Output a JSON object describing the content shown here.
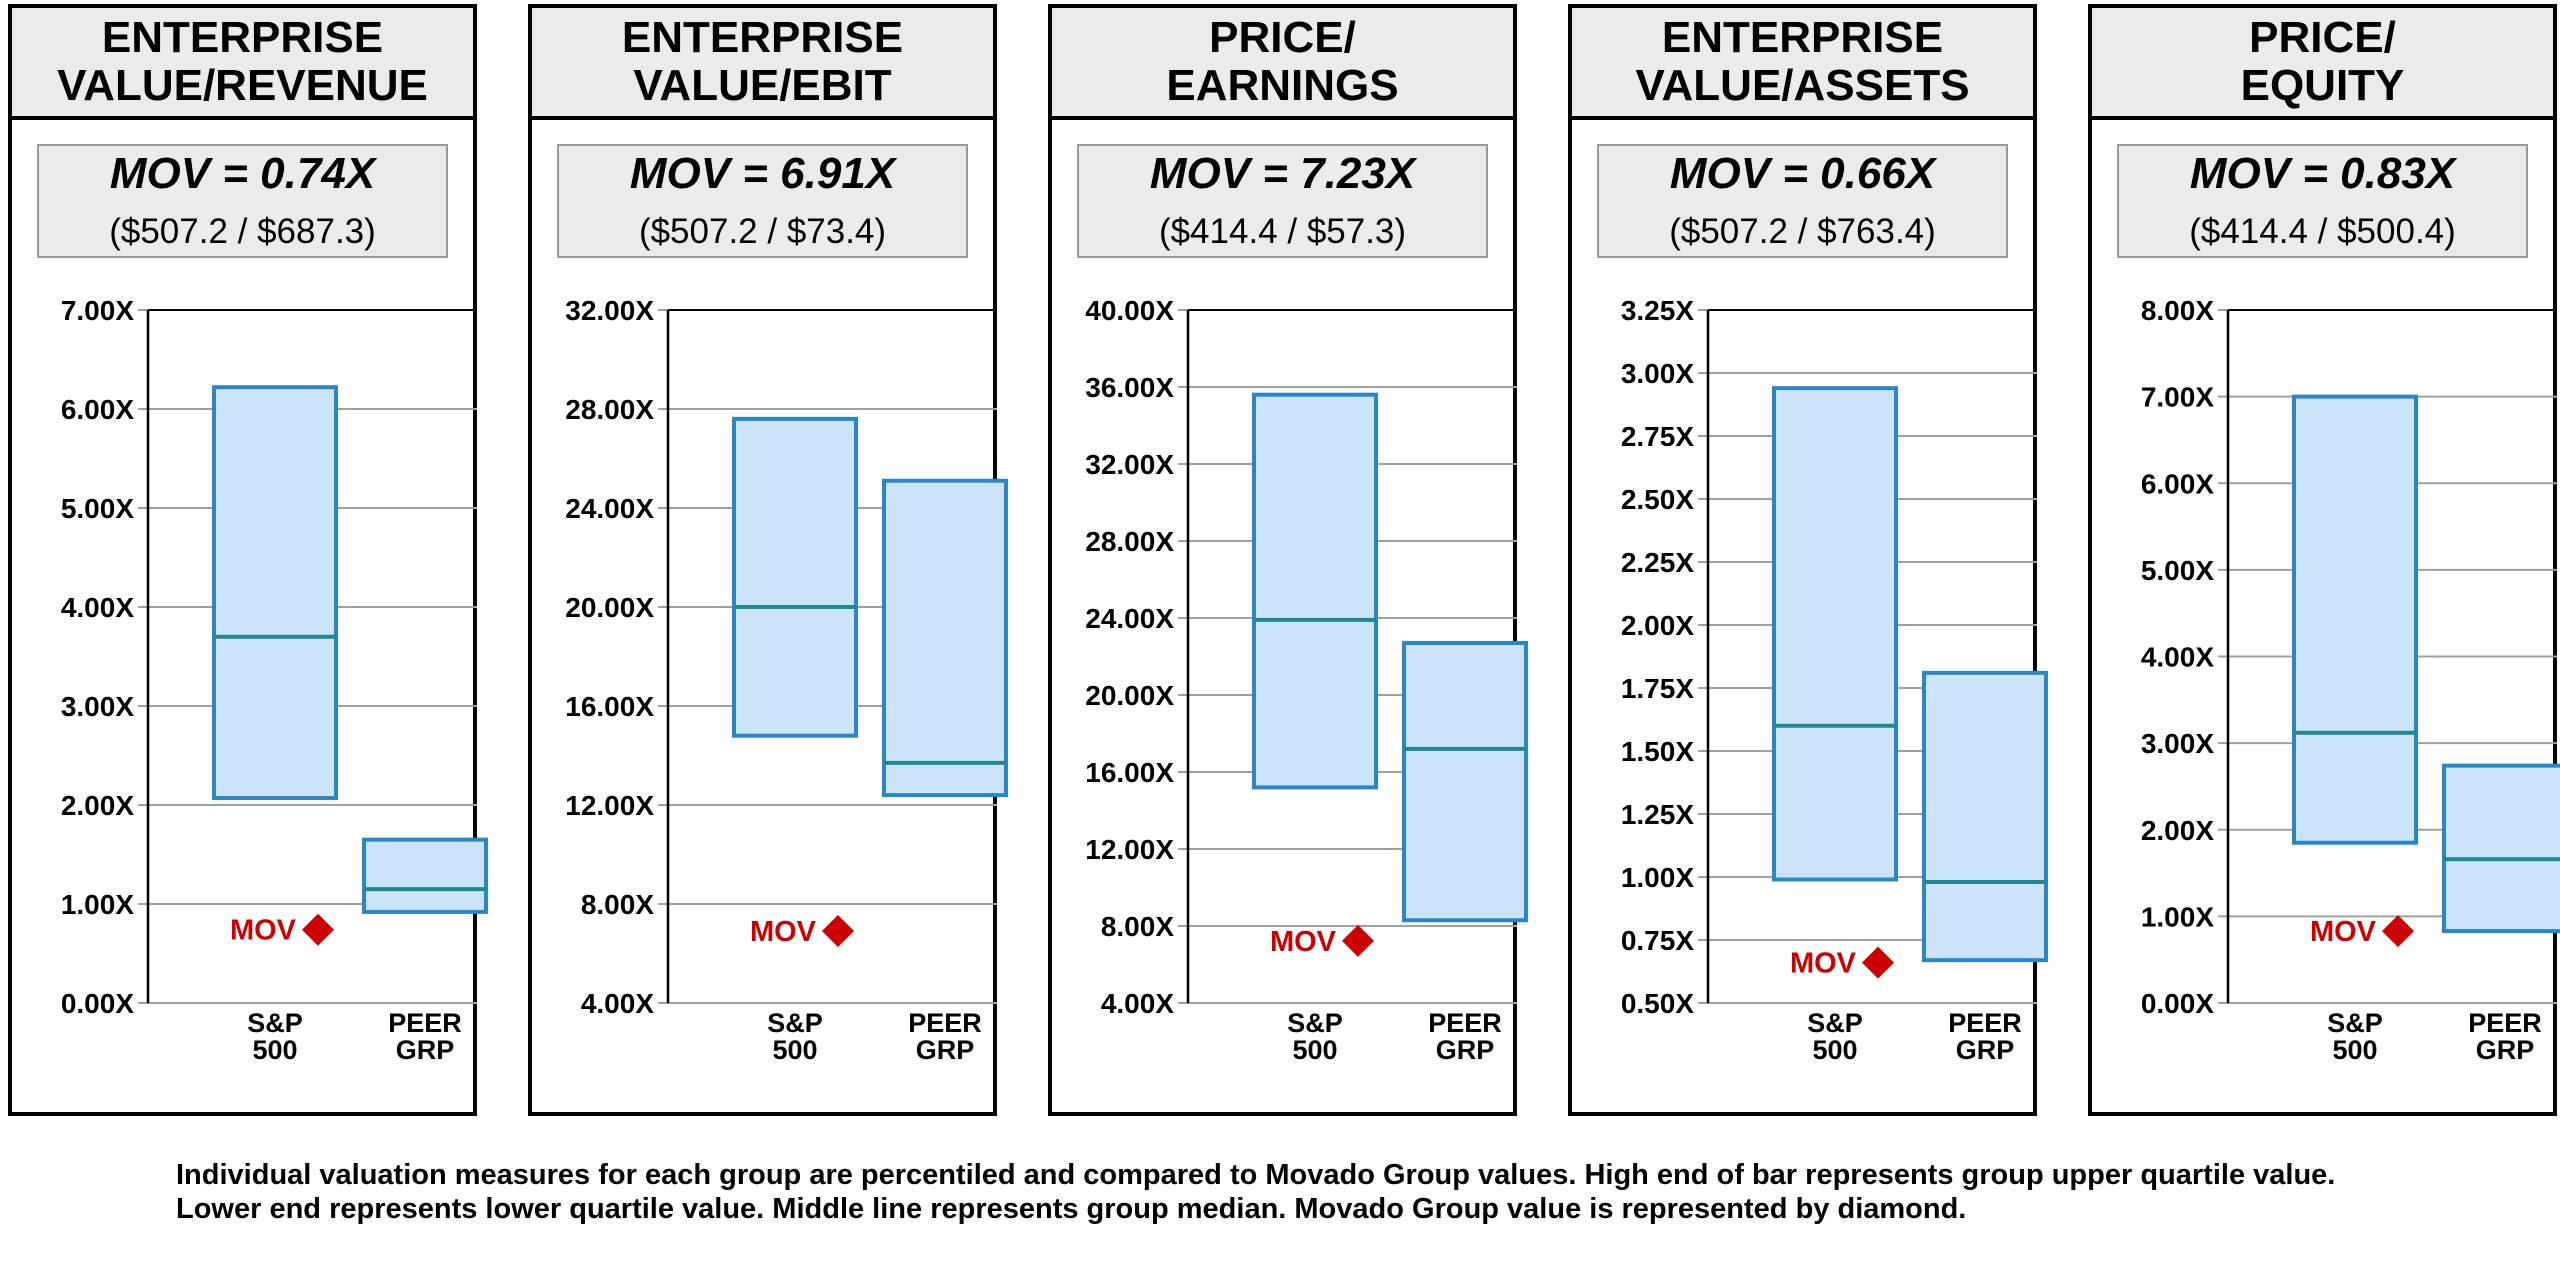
{
  "chart_data": [
    {
      "type": "box",
      "title": "ENTERPRISE VALUE/REVENUE",
      "title_lines": [
        "ENTERPRISE",
        "VALUE/REVENUE"
      ],
      "mov_label": "MOV = 0.74X",
      "mov_calc": "($507.2 / $687.3)",
      "mov_value": 0.74,
      "y_ticks": [
        "0.00X",
        "1.00X",
        "2.00X",
        "3.00X",
        "4.00X",
        "5.00X",
        "6.00X",
        "7.00X"
      ],
      "ylim": [
        0,
        7
      ],
      "categories": [
        [
          "S&P",
          "500"
        ],
        [
          "PEER",
          "GRP"
        ]
      ],
      "series": [
        {
          "name": "S&P 500",
          "q1": 2.07,
          "median": 3.7,
          "q3": 6.22
        },
        {
          "name": "PEER GRP",
          "q1": 0.92,
          "median": 1.15,
          "q3": 1.65
        }
      ]
    },
    {
      "type": "box",
      "title": "ENTERPRISE VALUE/EBIT",
      "title_lines": [
        "ENTERPRISE",
        "VALUE/EBIT"
      ],
      "mov_label": "MOV = 6.91X",
      "mov_calc": "($507.2 / $73.4)",
      "mov_value": 6.91,
      "y_ticks": [
        "4.00X",
        "8.00X",
        "12.00X",
        "16.00X",
        "20.00X",
        "24.00X",
        "28.00X",
        "32.00X"
      ],
      "ylim": [
        4,
        32
      ],
      "categories": [
        [
          "S&P",
          "500"
        ],
        [
          "PEER",
          "GRP"
        ]
      ],
      "series": [
        {
          "name": "S&P 500",
          "q1": 14.8,
          "median": 20.0,
          "q3": 27.6
        },
        {
          "name": "PEER GRP",
          "q1": 12.4,
          "median": 13.7,
          "q3": 25.1
        }
      ]
    },
    {
      "type": "box",
      "title": "PRICE/EARNINGS",
      "title_lines": [
        "PRICE/",
        "EARNINGS"
      ],
      "mov_label": "MOV = 7.23X",
      "mov_calc": "($414.4 / $57.3)",
      "mov_value": 7.23,
      "y_ticks": [
        "4.00X",
        "8.00X",
        "12.00X",
        "16.00X",
        "20.00X",
        "24.00X",
        "28.00X",
        "32.00X",
        "36.00X",
        "40.00X"
      ],
      "ylim": [
        4,
        40
      ],
      "categories": [
        [
          "S&P",
          "500"
        ],
        [
          "PEER",
          "GRP"
        ]
      ],
      "series": [
        {
          "name": "S&P 500",
          "q1": 15.2,
          "median": 23.9,
          "q3": 35.6
        },
        {
          "name": "PEER GRP",
          "q1": 8.3,
          "median": 17.2,
          "q3": 22.7
        }
      ]
    },
    {
      "type": "box",
      "title": "ENTERPRISE VALUE/ASSETS",
      "title_lines": [
        "ENTERPRISE",
        "VALUE/ASSETS"
      ],
      "mov_label": "MOV = 0.66X",
      "mov_calc": "($507.2 / $763.4)",
      "mov_value": 0.66,
      "y_ticks": [
        "0.50X",
        "0.75X",
        "1.00X",
        "1.25X",
        "1.50X",
        "1.75X",
        "2.00X",
        "2.25X",
        "2.50X",
        "2.75X",
        "3.00X",
        "3.25X"
      ],
      "ylim": [
        0.5,
        3.25
      ],
      "categories": [
        [
          "S&P",
          "500"
        ],
        [
          "PEER",
          "GRP"
        ]
      ],
      "series": [
        {
          "name": "S&P 500",
          "q1": 0.99,
          "median": 1.6,
          "q3": 2.94
        },
        {
          "name": "PEER GRP",
          "q1": 0.67,
          "median": 0.98,
          "q3": 1.81
        }
      ]
    },
    {
      "type": "box",
      "title": "PRICE/EQUITY",
      "title_lines": [
        "PRICE/",
        "EQUITY"
      ],
      "mov_label": "MOV = 0.83X",
      "mov_calc": "($414.4 / $500.4)",
      "mov_value": 0.83,
      "y_ticks": [
        "0.00X",
        "1.00X",
        "2.00X",
        "3.00X",
        "4.00X",
        "5.00X",
        "6.00X",
        "7.00X",
        "8.00X"
      ],
      "ylim": [
        0,
        8
      ],
      "categories": [
        [
          "S&P",
          "500"
        ],
        [
          "PEER",
          "GRP"
        ]
      ],
      "series": [
        {
          "name": "S&P 500",
          "q1": 1.85,
          "median": 3.12,
          "q3": 7.0
        },
        {
          "name": "PEER GRP",
          "q1": 0.83,
          "median": 1.66,
          "q3": 2.74
        }
      ]
    }
  ],
  "marker_label": "MOV",
  "colors": {
    "box_fill": "#cce4fa",
    "box_stroke": "#2b86c9",
    "median": "#1f8a8e",
    "diamond": "#cc0000",
    "header_fill": "#ebebeb",
    "grid": "#a0a0a0"
  },
  "footnote": "Individual valuation measures for each group are percentiled and compared to Movado Group values. High end of bar represents group upper quartile value. Lower end represents lower quartile value. Middle line represents group median. Movado Group value is represented by diamond."
}
